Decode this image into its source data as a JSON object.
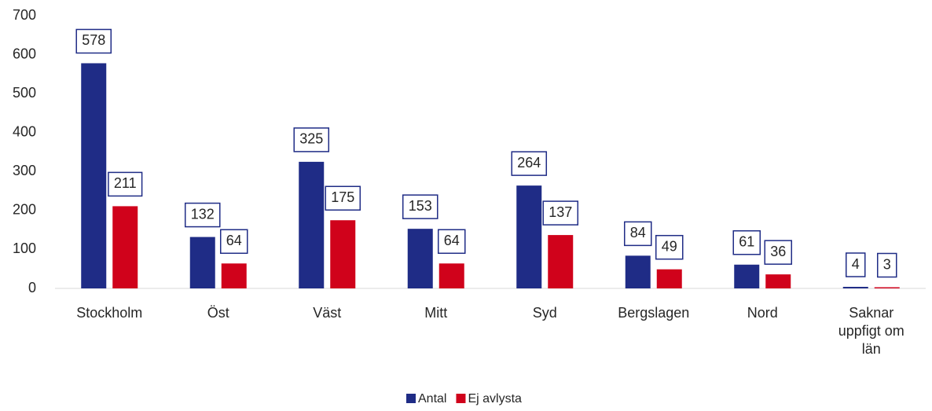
{
  "chart_data": {
    "type": "bar",
    "categories": [
      "Stockholm",
      "Öst",
      "Väst",
      "Mitt",
      "Syd",
      "Bergslagen",
      "Nord",
      "Saknar uppfigt om län"
    ],
    "series": [
      {
        "name": "Antal",
        "color": "#1f2c86",
        "values": [
          578,
          132,
          325,
          153,
          264,
          84,
          61,
          4
        ]
      },
      {
        "name": "Ej avlysta",
        "color": "#d0021b",
        "values": [
          211,
          64,
          175,
          64,
          137,
          49,
          36,
          3
        ]
      }
    ],
    "ylim": [
      0,
      700
    ],
    "yticks": [
      0,
      100,
      200,
      300,
      400,
      500,
      600,
      700
    ],
    "grid": false,
    "legend": "bottom"
  }
}
